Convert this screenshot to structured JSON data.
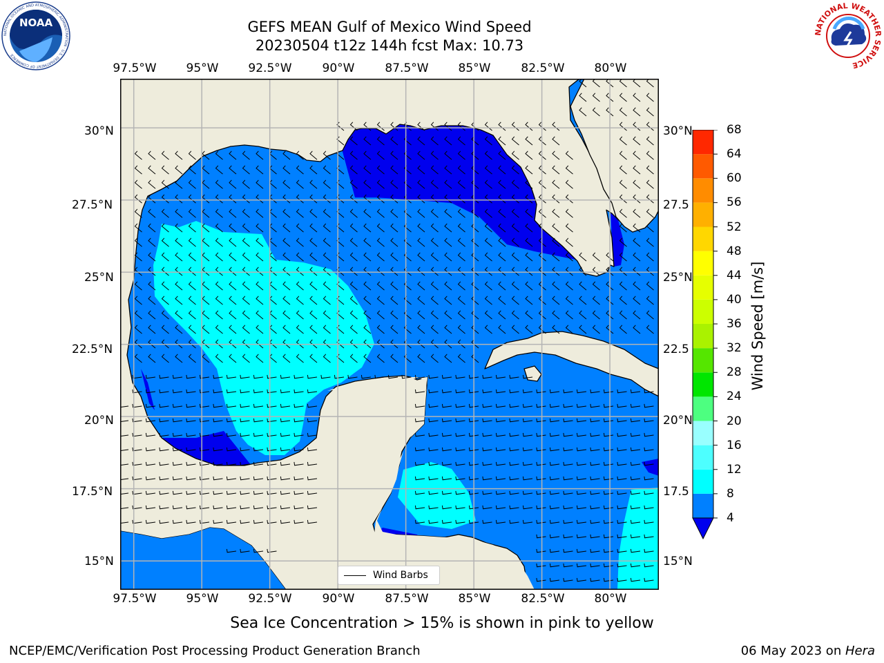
{
  "title": {
    "line1": "GEFS MEAN Gulf of Mexico Wind Speed",
    "line2": "20230504 t12z 144h fcst   Max: 10.73"
  },
  "map": {
    "lon_labels": [
      "97.5°W",
      "95°W",
      "92.5°W",
      "90°W",
      "87.5°W",
      "85°W",
      "82.5°W",
      "80°W"
    ],
    "lat_labels_left": [
      "30°N",
      "27.5°N",
      "25°N",
      "22.5°N",
      "20°N",
      "17.5°N",
      "15°N"
    ],
    "lat_labels_right": [
      "30°N",
      "27.5",
      "25°N",
      "22.5",
      "20°N",
      "17.5",
      "15°N"
    ],
    "lon_values": [
      -97.5,
      -95,
      -92.5,
      -90,
      -87.5,
      -85,
      -82.5,
      -80
    ],
    "lat_values": [
      30,
      27.5,
      25,
      22.5,
      20,
      17.5,
      15
    ],
    "extent": {
      "lon_min": -98,
      "lon_max": -78.2,
      "lat_min": 14,
      "lat_max": 31.7
    },
    "colors": {
      "land": "#eeecdc",
      "ocean_4_8": "#0080ff",
      "ocean_0_4": "#0000ee",
      "ocean_8_12": "#00ffff",
      "grid": "#b4b4b4",
      "coast": "#000000"
    }
  },
  "legend": {
    "label": "Wind Barbs"
  },
  "colorbar": {
    "label": "Wind Speed [m/s]",
    "ticks": [
      "68",
      "64",
      "60",
      "56",
      "52",
      "48",
      "44",
      "40",
      "36",
      "32",
      "28",
      "24",
      "20",
      "16",
      "12",
      "8",
      "4"
    ],
    "levels": [
      4,
      8,
      12,
      16,
      20,
      24,
      28,
      32,
      36,
      40,
      44,
      48,
      52,
      56,
      60,
      64,
      68
    ],
    "colors": [
      "#0080ff",
      "#00ffff",
      "#4dffff",
      "#99ffff",
      "#4dff80",
      "#00e600",
      "#55e600",
      "#aaf200",
      "#ccff00",
      "#e6ff00",
      "#ffff00",
      "#ffd700",
      "#ffb000",
      "#ff8c00",
      "#ff5a00",
      "#ff2800"
    ],
    "under_color": "#0000ee"
  },
  "subnote": "Sea Ice Concentration > 15% is shown in pink to yellow",
  "footer": {
    "left": "NCEP/EMC/Verification Post Processing Product Generation Branch",
    "right_date": "06 May 2023 on ",
    "right_machine": "Hera"
  },
  "logos": {
    "noaa_text": "NOAA",
    "noaa_ring": "NATIONAL OCEANIC AND ATMOSPHERIC ADMINISTRATION · U.S. DEPARTMENT OF COMMERCE",
    "nws_ring": "NATIONAL WEATHER SERVICE"
  }
}
